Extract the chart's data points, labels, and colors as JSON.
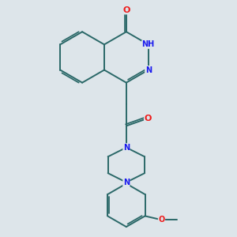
{
  "bg_color": "#dde5ea",
  "bond_color": "#2a6868",
  "atom_colors": {
    "N": "#1a1aee",
    "O": "#ee1a1a",
    "H": "#888888",
    "C": "#2a6868"
  },
  "bond_width": 1.4,
  "figsize": [
    3.0,
    3.0
  ],
  "dpi": 100
}
